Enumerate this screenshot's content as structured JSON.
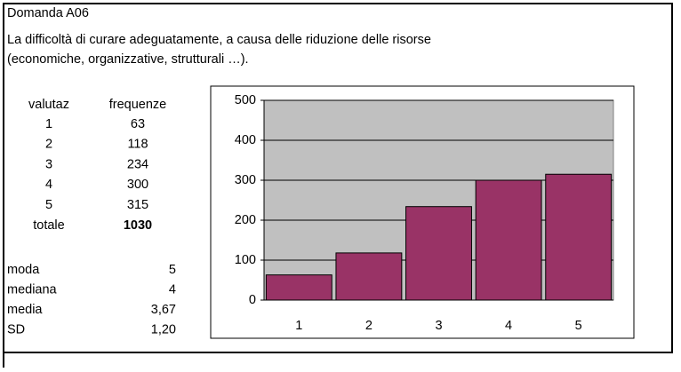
{
  "header": {
    "code": "Domanda  A06",
    "lines": [
      "La difficoltà di curare adeguatamente, a causa delle riduzione delle risorse",
      "(economiche, organizzative, strutturali …)."
    ]
  },
  "table": {
    "columns": [
      "valutaz",
      "frequenze"
    ],
    "rows": [
      [
        "1",
        "63"
      ],
      [
        "2",
        "118"
      ],
      [
        "3",
        "234"
      ],
      [
        "4",
        "300"
      ],
      [
        "5",
        "315"
      ]
    ],
    "total": [
      "totale",
      "1030"
    ]
  },
  "stats": [
    [
      "moda",
      "5"
    ],
    [
      "mediana",
      "4"
    ],
    [
      "media",
      "3,67"
    ],
    [
      "SD",
      "1,20"
    ]
  ],
  "chart_data": {
    "type": "bar",
    "categories": [
      "1",
      "2",
      "3",
      "4",
      "5"
    ],
    "values": [
      63,
      118,
      234,
      300,
      315
    ],
    "color": "#993366",
    "ylim": [
      0,
      500
    ],
    "yticks": [
      0,
      100,
      200,
      300,
      400,
      500
    ],
    "grid": true
  }
}
